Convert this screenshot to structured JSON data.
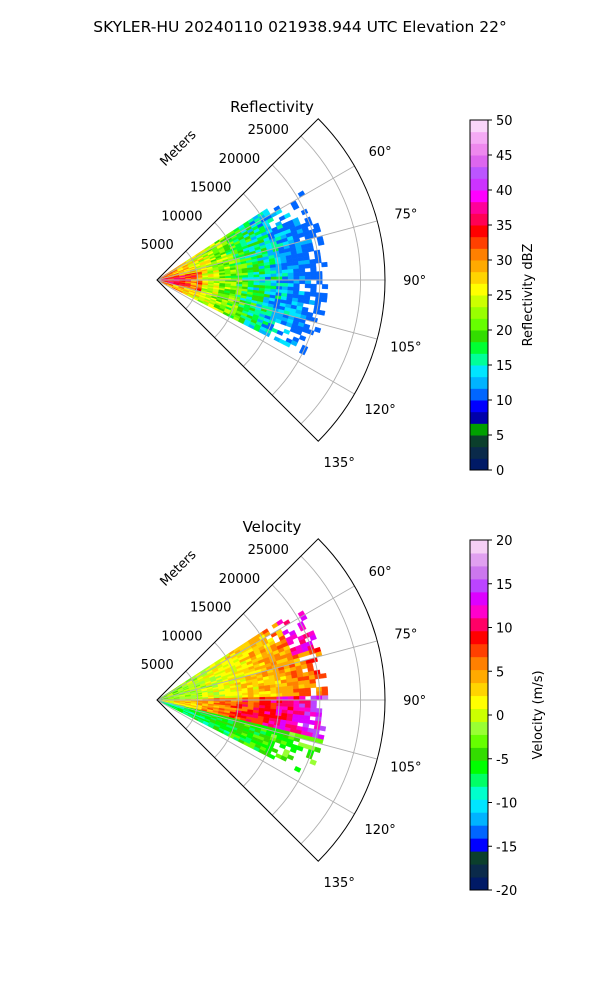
{
  "figure": {
    "title": "SKYLER-HU  20240110  021938.944 UTC Elevation 22°"
  },
  "colors": {
    "reflectivity": [
      "#001a66",
      "#0a2a4a",
      "#0b3f2c",
      "#00a000",
      "#0000aa",
      "#0000ff",
      "#0066ff",
      "#00b3ff",
      "#00e5ff",
      "#00ff99",
      "#00ff33",
      "#33dd00",
      "#66ff00",
      "#99ff00",
      "#ccff00",
      "#ffff00",
      "#ffd400",
      "#ffaa00",
      "#ff8000",
      "#ff4000",
      "#ff0000",
      "#ff0055",
      "#ff0099",
      "#ff00ff",
      "#cc33ff",
      "#bb55ff",
      "#dd66ee",
      "#ee88ee",
      "#f5aaf5",
      "#fad5fa"
    ],
    "velocity": [
      "#001a66",
      "#0a2a4a",
      "#0b3f2c",
      "#0000ff",
      "#0066ff",
      "#00b3ff",
      "#00e5ff",
      "#00ffcc",
      "#00ff66",
      "#00ff00",
      "#33dd00",
      "#66ff00",
      "#99ff33",
      "#ccff00",
      "#ffff00",
      "#ffd400",
      "#ffaa00",
      "#ff8000",
      "#ff4000",
      "#ff0000",
      "#ff0066",
      "#ff00cc",
      "#dd00ff",
      "#bb44ff",
      "#cc77ee",
      "#e0a0f0",
      "#f5cff5"
    ]
  },
  "chart_data": [
    {
      "type": "heatmap",
      "projection": "polar-sector",
      "title": "Reflectivity",
      "radial_label": "Meters",
      "radial_ticks": [
        5000,
        10000,
        15000,
        20000,
        25000
      ],
      "radial_tick_labels": [
        "5000",
        "10000",
        "15000",
        "20000",
        "25000"
      ],
      "r_max": 28000,
      "theta_range_deg": [
        45,
        135
      ],
      "theta_ticks": [
        60,
        75,
        90,
        105,
        120,
        135
      ],
      "theta_tick_labels": [
        "60°",
        "75°",
        "90°",
        "105°",
        "120°",
        "135°"
      ],
      "data_extent": {
        "theta_deg": [
          57,
          117
        ],
        "r_m": [
          0,
          20500
        ]
      },
      "colorbar": {
        "label": "Reflectivity dBZ",
        "min": 0,
        "max": 50,
        "ticks": [
          0,
          5,
          10,
          15,
          20,
          25,
          30,
          35,
          40,
          45,
          50
        ]
      },
      "grid": true
    },
    {
      "type": "heatmap",
      "projection": "polar-sector",
      "title": "Velocity",
      "radial_label": "Meters",
      "radial_ticks": [
        5000,
        10000,
        15000,
        20000,
        25000
      ],
      "radial_tick_labels": [
        "5000",
        "10000",
        "15000",
        "20000",
        "25000"
      ],
      "r_max": 28000,
      "theta_range_deg": [
        45,
        135
      ],
      "theta_ticks": [
        60,
        75,
        90,
        105,
        120,
        135
      ],
      "theta_tick_labels": [
        "60°",
        "75°",
        "90°",
        "105°",
        "120°",
        "135°"
      ],
      "data_extent": {
        "theta_deg": [
          57,
          117
        ],
        "r_m": [
          0,
          20500
        ]
      },
      "colorbar": {
        "label": "Velocity (m/s)",
        "min": -20,
        "max": 20,
        "ticks": [
          -20,
          -15,
          -10,
          -5,
          0,
          5,
          10,
          15,
          20
        ]
      },
      "grid": true
    }
  ]
}
